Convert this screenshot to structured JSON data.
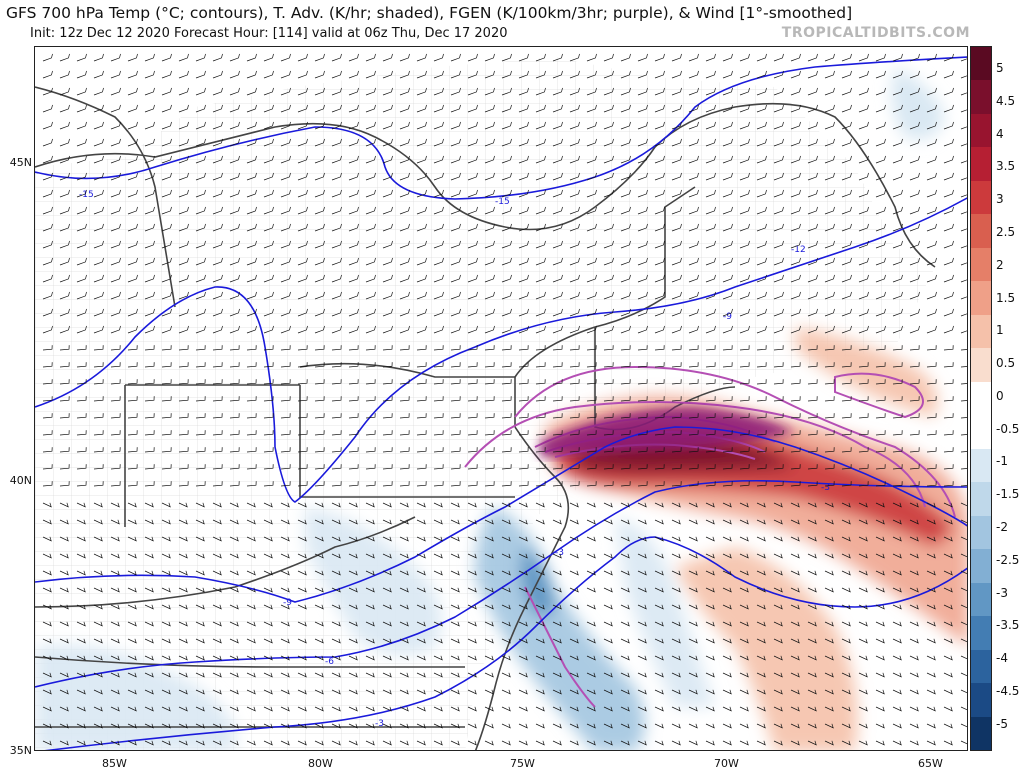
{
  "header": {
    "title": "GFS 700 hPa Temp (°C; contours), T. Adv. (K/hr; shaded), FGEN (K/100km/3hr; purple), & Wind [1°-smoothed]",
    "init_line": "Init: 12z Dec 12 2020   Forecast Hour: [114]   valid at 06z Thu, Dec 17 2020",
    "brand": "TROPICALTIDBITS.COM"
  },
  "axes": {
    "lat_labels": [
      "45N",
      "40N",
      "35N"
    ],
    "lon_labels": [
      "85W",
      "80W",
      "75W",
      "70W",
      "65W"
    ]
  },
  "colorbar": {
    "labels": [
      "5",
      "4.5",
      "4",
      "3.5",
      "3",
      "2.5",
      "2",
      "1.5",
      "1",
      "0.5",
      "0",
      "-0.5",
      "-1",
      "-1.5",
      "-2",
      "-2.5",
      "-3",
      "-3.5",
      "-4",
      "-4.5",
      "-5"
    ],
    "colors": [
      "#5a0a22",
      "#7a0f2c",
      "#98142f",
      "#b61f33",
      "#cc3a3c",
      "#d95f4f",
      "#e57f68",
      "#efa088",
      "#f5c1aa",
      "#f9ddce",
      "#ffffff",
      "#ffffff",
      "#d9e8f3",
      "#bfd8ea",
      "#a2c5e0",
      "#82afd3",
      "#6197c4",
      "#437db3",
      "#2c639e",
      "#1b4a85",
      "#0f3464"
    ]
  },
  "contour_labels": [
    "-15",
    "-15",
    "-12",
    "-9",
    "-9",
    "-6",
    "-3",
    "-3",
    "-3"
  ],
  "colors": {
    "contour": "#1a1adb",
    "fgen": "#b44fb4",
    "warm_adv": "#d95f4f",
    "cold_adv": "#6197c4",
    "border": "#444444",
    "county": "#bbbbbb"
  }
}
